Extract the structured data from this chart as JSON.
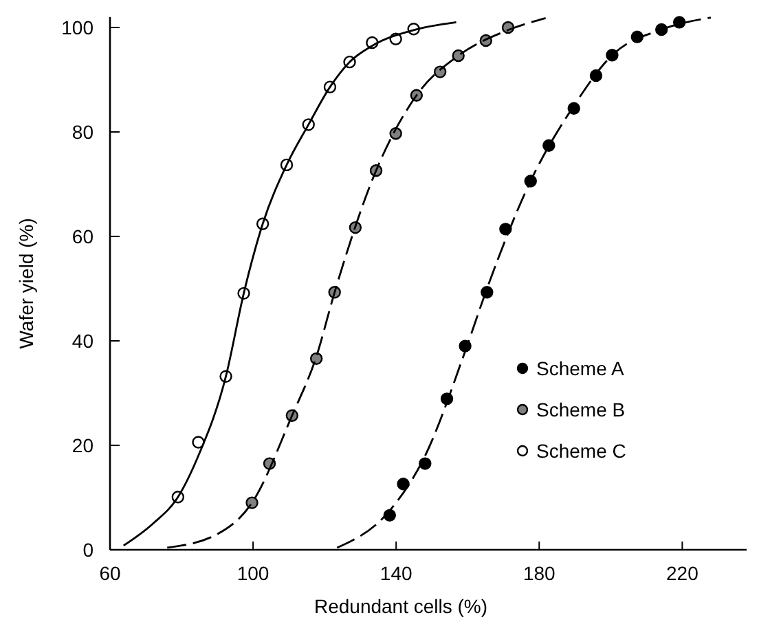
{
  "chart_data": {
    "type": "scatter",
    "xlabel": "Redundant cells (%)",
    "ylabel": "Wafer yield (%)",
    "xlim": [
      60,
      238
    ],
    "ylim": [
      0,
      102
    ],
    "xticks": [
      60,
      100,
      140,
      180,
      220
    ],
    "yticks": [
      0,
      20,
      40,
      60,
      80,
      100
    ],
    "grid": false,
    "legend": "bottom right",
    "marker": "circle",
    "series": [
      {
        "name": "Scheme A",
        "color": "#000000",
        "x": [
          138.2,
          142,
          148.1,
          154.2,
          159.3,
          165.4,
          170.6,
          177.6,
          182.7,
          189.7,
          195.9,
          200.4,
          207.4,
          214.2,
          219.2
        ],
        "values": [
          6.6,
          12.6,
          16.5,
          28.9,
          39,
          49.3,
          61.4,
          70.6,
          77.4,
          84.5,
          90.8,
          94.7,
          98.2,
          99.6,
          101
        ]
      },
      {
        "name": "Scheme B",
        "color": "#808080",
        "x": [
          99.7,
          104.6,
          110.9,
          117.7,
          122.8,
          128.6,
          134.4,
          139.9,
          145.7,
          152.3,
          157.4,
          165.1,
          171.3
        ],
        "values": [
          9,
          16.5,
          25.7,
          36.6,
          49.3,
          61.7,
          72.6,
          79.7,
          87,
          91.5,
          94.6,
          97.5,
          100
        ]
      },
      {
        "name": "Scheme C",
        "color": "#ffffff",
        "x": [
          79,
          84.7,
          92.4,
          97.4,
          102.7,
          109.4,
          115.5,
          121.5,
          127,
          133.3,
          139.9,
          144.9
        ],
        "values": [
          10.1,
          20.6,
          33.2,
          49.1,
          62.4,
          73.7,
          81.4,
          88.6,
          93.4,
          97.1,
          97.8,
          99.7
        ]
      },
      {
        "type": "line",
        "color": "#000000",
        "line_style": "dashed",
        "marker": "none",
        "x": [
          123.5,
          138.2,
          148.1,
          159.3,
          165.4,
          177.6,
          189.7,
          200.4,
          214.2,
          228
        ],
        "values": [
          0.4,
          7.5,
          18,
          38,
          50,
          70.6,
          85,
          94.7,
          99.6,
          101.9
        ]
      },
      {
        "type": "line",
        "color": "#000000",
        "line_style": "dashed",
        "marker": "none",
        "x": [
          76,
          90,
          99.7,
          110.9,
          117.7,
          122.8,
          134.4,
          145.7,
          157.4,
          171.3,
          181.8
        ],
        "values": [
          0.4,
          3,
          9,
          25.7,
          37,
          49.3,
          72.6,
          87,
          94.6,
          99.5,
          101.8
        ]
      },
      {
        "type": "line",
        "color": "#000000",
        "line_style": "solid",
        "marker": "none",
        "x": [
          63.8,
          72,
          79,
          84.7,
          92.4,
          97.4,
          102.7,
          109.4,
          115.5,
          121.5,
          127,
          133.3,
          144.9,
          156.8
        ],
        "values": [
          0.8,
          5,
          10.1,
          18,
          33.2,
          49.1,
          62.4,
          73.7,
          81.4,
          88.6,
          93.4,
          96.5,
          99.5,
          101
        ]
      }
    ]
  }
}
